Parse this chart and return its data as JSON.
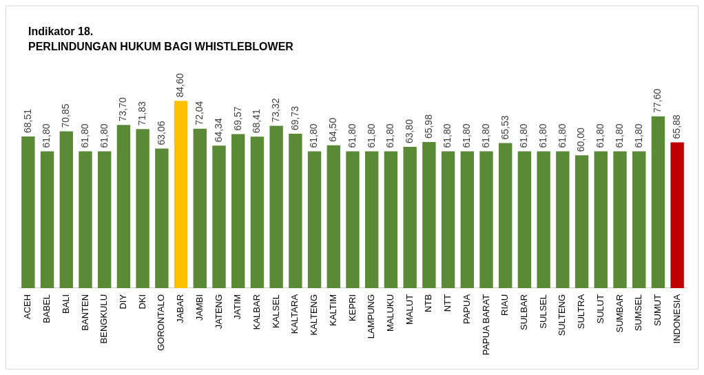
{
  "chart_data": {
    "type": "bar",
    "title": "Indikator 18.",
    "subtitle": "PERLINDUNGAN HUKUM BAGI WHISTLEBLOWER",
    "categories": [
      "ACEH",
      "BABEL",
      "BALI",
      "BANTEN",
      "BENGKULU",
      "DIY",
      "DKI",
      "GORONTALO",
      "JABAR",
      "JAMBI",
      "JATENG",
      "JATIM",
      "KALBAR",
      "KALSEL",
      "KALTARA",
      "KALTENG",
      "KALTIM",
      "KEPRI",
      "LAMPUNG",
      "MALUKU",
      "MALUT",
      "NTB",
      "NTT",
      "PAPUA",
      "PAPUA BARAT",
      "RIAU",
      "SULBAR",
      "SULSEL",
      "SULTENG",
      "SULTRA",
      "SULUT",
      "SUMBAR",
      "SUMSEL",
      "SUMUT",
      "INDONESIA"
    ],
    "values": [
      68.51,
      61.8,
      70.85,
      61.8,
      61.8,
      73.7,
      71.83,
      63.06,
      84.6,
      72.04,
      64.34,
      69.57,
      68.41,
      73.32,
      69.73,
      61.8,
      64.5,
      61.8,
      61.8,
      61.8,
      63.8,
      65.98,
      61.8,
      61.8,
      61.8,
      65.53,
      61.8,
      61.8,
      61.8,
      60.0,
      61.8,
      61.8,
      61.8,
      77.6,
      65.88
    ],
    "value_labels": [
      "68,51",
      "61,80",
      "70,85",
      "61,80",
      "61,80",
      "73,70",
      "71,83",
      "63,06",
      "84,60",
      "72,04",
      "64,34",
      "69,57",
      "68,41",
      "73,32",
      "69,73",
      "61,80",
      "64,50",
      "61,80",
      "61,80",
      "61,80",
      "63,80",
      "65,98",
      "61,80",
      "61,80",
      "61,80",
      "65,53",
      "61,80",
      "61,80",
      "61,80",
      "60,00",
      "61,80",
      "61,80",
      "61,80",
      "77,60",
      "65,88"
    ],
    "colors": [
      "#5b8a36",
      "#5b8a36",
      "#5b8a36",
      "#5b8a36",
      "#5b8a36",
      "#5b8a36",
      "#5b8a36",
      "#5b8a36",
      "#ffc000",
      "#5b8a36",
      "#5b8a36",
      "#5b8a36",
      "#5b8a36",
      "#5b8a36",
      "#5b8a36",
      "#5b8a36",
      "#5b8a36",
      "#5b8a36",
      "#5b8a36",
      "#5b8a36",
      "#5b8a36",
      "#5b8a36",
      "#5b8a36",
      "#5b8a36",
      "#5b8a36",
      "#5b8a36",
      "#5b8a36",
      "#5b8a36",
      "#5b8a36",
      "#5b8a36",
      "#5b8a36",
      "#5b8a36",
      "#5b8a36",
      "#5b8a36",
      "#c00000"
    ],
    "grid": false,
    "legend": false
  }
}
